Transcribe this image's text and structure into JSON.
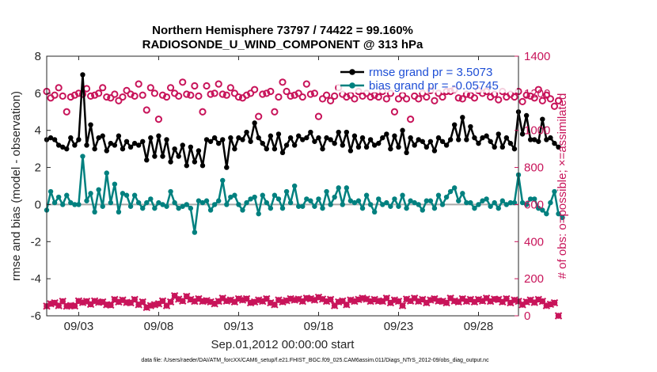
{
  "chart_data": {
    "type": "line",
    "title_line1": "Northern Hemisphere 73797 / 74422 = 99.160%",
    "title_line2": "RADIOSONDE_U_WIND_COMPONENT @ 313 hPa",
    "ylabel_left": "rmse and bias (model - observation)",
    "ylabel_right": "# of obs: o=possible; ×=assimilated",
    "xlabel": "Sep.01,2012 00:00:00 start",
    "footer": "data file: /Users/raeder/DAI/ATM_forcXX/CAM6_setup/f.e21.FHIST_BGC.f09_025.CAM6assim.011/Diags_NTrS_2012-09/obs_diag_output.nc",
    "ylim_left": [
      -6,
      8
    ],
    "ylim_right": [
      0,
      1400
    ],
    "xlim_days": [
      1.0,
      30.5
    ],
    "left_ticks": [
      "-6",
      "-4",
      "-2",
      "0",
      "2",
      "4",
      "6",
      "8"
    ],
    "right_ticks": [
      "0",
      "200",
      "400",
      "600",
      "800",
      "1000",
      "1200",
      "1400"
    ],
    "x_ticks": [
      {
        "day": 3,
        "label": "09/03"
      },
      {
        "day": 8,
        "label": "09/08"
      },
      {
        "day": 13,
        "label": "09/13"
      },
      {
        "day": 18,
        "label": "09/18"
      },
      {
        "day": 23,
        "label": "09/23"
      },
      {
        "day": 28,
        "label": "09/28"
      }
    ],
    "legend": {
      "rmse_label": "rmse grand pr = 3.5073",
      "bias_label": "bias grand pr = -0.05745",
      "placement": "top-right"
    },
    "x_start_day": 1.0,
    "x_step_day": 0.25,
    "series": [
      {
        "name": "rmse",
        "color": "#000000",
        "values": [
          3.5,
          3.6,
          3.5,
          3.2,
          3.1,
          3.0,
          3.6,
          3.2,
          3.5,
          7.0,
          3.2,
          4.3,
          3.0,
          3.6,
          3.7,
          2.9,
          3.3,
          3.2,
          3.7,
          3.0,
          3.4,
          3.1,
          3.3,
          3.2,
          3.4,
          2.4,
          3.6,
          2.6,
          3.7,
          2.6,
          3.5,
          2.3,
          3.0,
          2.6,
          3.2,
          2.1,
          3.1,
          2.3,
          2.9,
          2.1,
          3.5,
          3.4,
          3.6,
          3.3,
          3.5,
          2.0,
          3.6,
          3.0,
          3.6,
          3.5,
          3.9,
          3.4,
          4.4,
          3.6,
          3.3,
          3.0,
          3.7,
          3.0,
          3.8,
          2.8,
          3.2,
          3.6,
          3.2,
          3.7,
          3.5,
          3.6,
          3.9,
          3.4,
          3.6,
          3.0,
          3.6,
          3.5,
          3.3,
          3.9,
          3.2,
          3.9,
          2.9,
          3.7,
          3.1,
          3.6,
          3.1,
          3.5,
          3.2,
          3.3,
          3.6,
          3.8,
          3.0,
          3.7,
          3.1,
          4.0,
          2.8,
          3.6,
          3.2,
          3.5,
          3.4,
          3.1,
          3.4,
          2.9,
          3.6,
          3.4,
          3.2,
          3.5,
          4.3,
          3.5,
          4.7,
          3.5,
          4.2,
          3.6,
          3.3,
          3.6,
          3.7,
          3.4,
          3.1,
          3.8,
          3.1,
          3.6,
          3.3,
          3.0,
          5.0,
          3.8,
          4.8,
          3.5,
          3.5,
          3.4,
          4.6,
          3.5,
          3.6,
          3.3,
          3.1
        ]
      },
      {
        "name": "bias",
        "color": "#00807f",
        "values": [
          -0.3,
          0.7,
          0.1,
          0.4,
          0.0,
          0.5,
          0.1,
          0.0,
          0.0,
          2.6,
          0.2,
          0.6,
          -0.4,
          0.8,
          -0.1,
          1.7,
          0.1,
          1.1,
          -0.4,
          0.6,
          0.5,
          -0.1,
          0.5,
          0.1,
          -0.2,
          0.1,
          0.3,
          -0.2,
          0.1,
          0.0,
          -0.1,
          0.7,
          0.1,
          -0.2,
          -0.1,
          0.0,
          -0.2,
          -1.5,
          0.2,
          0.1,
          0.2,
          -0.3,
          0.0,
          0.2,
          1.3,
          0.0,
          0.4,
          0.5,
          0.0,
          -0.3,
          0.1,
          0.3,
          0.4,
          -0.5,
          0.5,
          0.1,
          -0.2,
          0.5,
          0.3,
          -0.2,
          0.7,
          0.1,
          1.0,
          -0.1,
          -0.1,
          0.3,
          0.2,
          -0.1,
          0.3,
          -0.2,
          0.7,
          0.0,
          0.4,
          0.9,
          0.0,
          0.9,
          0.2,
          0.1,
          0.2,
          -0.2,
          0.5,
          0.0,
          -0.4,
          0.3,
          0.0,
          0.1,
          -0.1,
          0.3,
          -0.1,
          0.5,
          -0.2,
          0.2,
          0.1,
          0.0,
          -0.3,
          0.2,
          0.2,
          -0.2,
          0.5,
          0.0,
          0.4,
          0.7,
          0.9,
          0.2,
          0.6,
          0.1,
          0.1,
          -0.2,
          0.0,
          0.2,
          0.3,
          -0.1,
          0.1,
          -0.2,
          0.2,
          0.0,
          0.1,
          0.1,
          1.6,
          0.1,
          0.0,
          0.3,
          0.3,
          -0.2,
          -0.3,
          -0.5,
          0.1,
          0.7,
          -0.5,
          -0.7
        ]
      },
      {
        "name": "possible",
        "color": "#c8145a",
        "values": [
          1210,
          1175,
          1190,
          1230,
          1185,
          1100,
          1180,
          1190,
          1200,
          1195,
          1225,
          1185,
          1190,
          1200,
          1230,
          1180,
          1175,
          1195,
          1160,
          1180,
          1215,
          1195,
          1185,
          1250,
          1190,
          1110,
          1230,
          1200,
          1060,
          1190,
          1180,
          1230,
          1200,
          1185,
          1260,
          1195,
          1190,
          1240,
          1185,
          1100,
          1240,
          1195,
          1200,
          1250,
          1195,
          1190,
          1230,
          1200,
          1180,
          1175,
          1190,
          1200,
          1220,
          1075,
          1195,
          1200,
          1210,
          1100,
          1180,
          1260,
          1210,
          1185,
          1190,
          1200,
          1180,
          1250,
          1195,
          1200,
          1075,
          1170,
          1190,
          1160,
          1185,
          1230,
          1195,
          1180,
          1190,
          1170,
          1210,
          1185,
          1200,
          1180,
          1190,
          1180,
          1210,
          1170,
          1200,
          1100,
          1170,
          1190,
          1170,
          1060,
          1185,
          1170,
          1200,
          1180,
          1215,
          1160,
          1200,
          1180,
          1210,
          1210,
          1220,
          1175,
          1170,
          1195,
          1190,
          1175,
          1215,
          1200,
          1210,
          1180,
          1195,
          1165,
          1210,
          1180,
          1195,
          1180,
          1210,
          1155,
          1190,
          1185,
          1175,
          1220,
          1160,
          1190,
          1170,
          1130,
          1160
        ]
      },
      {
        "name": "assimilated",
        "color": "#c8145a",
        "values": [
          52,
          65,
          70,
          55,
          78,
          52,
          55,
          53,
          80,
          72,
          78,
          62,
          80,
          73,
          75,
          60,
          58,
          88,
          75,
          85,
          72,
          70,
          88,
          60,
          75,
          45,
          55,
          60,
          65,
          80,
          55,
          75,
          108,
          90,
          80,
          105,
          88,
          78,
          92,
          78,
          82,
          75,
          65,
          78,
          95,
          80,
          85,
          75,
          92,
          85,
          92,
          70,
          75,
          85,
          78,
          92,
          70,
          60,
          85,
          75,
          82,
          92,
          85,
          90,
          78,
          95,
          92,
          85,
          100,
          90,
          78,
          88,
          55,
          75,
          80,
          60,
          85,
          78,
          88,
          95,
          90,
          78,
          88,
          80,
          78,
          95,
          70,
          85,
          78,
          55,
          90,
          80,
          95,
          78,
          88,
          70,
          85,
          92,
          80,
          78,
          70,
          95,
          80,
          75,
          92,
          78,
          88,
          75,
          88,
          80,
          95,
          78,
          90,
          88,
          75,
          92,
          70,
          85,
          78,
          60,
          75,
          85,
          72,
          88,
          78,
          55,
          62,
          70,
          0
        ]
      }
    ]
  }
}
